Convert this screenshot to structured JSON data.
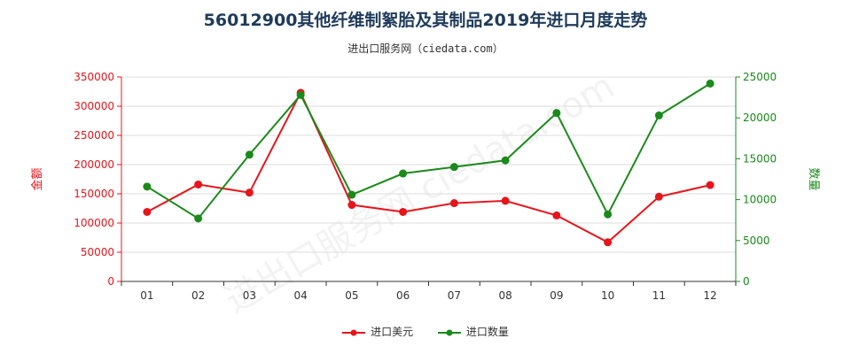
{
  "title": "56012900其他纤维制絮胎及其制品2019年进口月度走势",
  "subtitle": "进出口服务网（ciedata.com）",
  "watermark": "进出口服务网 ciedata.com",
  "colors": {
    "series1": "#e8141b",
    "series2": "#1a8a1a",
    "axis_left": "#e8141b",
    "axis_right": "#1a8a1a",
    "grid": "#dddddd",
    "axis": "#333333"
  },
  "chart_data": {
    "type": "line",
    "categories": [
      "01",
      "02",
      "03",
      "04",
      "05",
      "06",
      "07",
      "08",
      "09",
      "10",
      "11",
      "12"
    ],
    "series": [
      {
        "name": "进口美元",
        "axis": "left",
        "values": [
          119000,
          166000,
          152000,
          323000,
          131000,
          119000,
          134000,
          138000,
          113000,
          67000,
          145000,
          165000
        ]
      },
      {
        "name": "进口数量",
        "axis": "right",
        "values": [
          11600,
          7700,
          15500,
          22800,
          10600,
          13200,
          14000,
          14800,
          20600,
          8200,
          20300,
          24200
        ]
      }
    ],
    "y_left": {
      "label": "金额",
      "ylim": [
        0,
        350000
      ],
      "ticks": [
        "0",
        "50000",
        "100000",
        "150000",
        "200000",
        "250000",
        "300000",
        "350000"
      ]
    },
    "y_right": {
      "label": "数量",
      "ylim": [
        0,
        25000
      ],
      "ticks": [
        "0",
        "5000",
        "10000",
        "15000",
        "20000",
        "25000"
      ]
    },
    "grid": true,
    "legend_position": "bottom"
  }
}
